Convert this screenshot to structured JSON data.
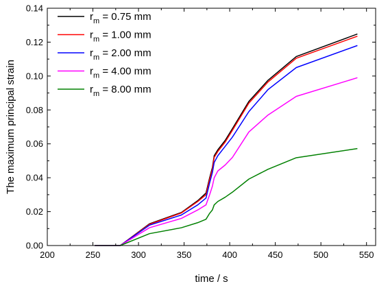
{
  "chart_data": {
    "type": "line",
    "xlabel": "time / s",
    "ylabel": "The maximum principal strain",
    "xlim": [
      200,
      560
    ],
    "ylim": [
      0.0,
      0.14
    ],
    "xticks": [
      200,
      250,
      300,
      350,
      400,
      450,
      500,
      550
    ],
    "yticks": [
      0.0,
      0.02,
      0.04,
      0.06,
      0.08,
      0.1,
      0.12,
      0.14
    ],
    "xtick_labels": [
      "200",
      "250",
      "300",
      "350",
      "400",
      "450",
      "500",
      "550"
    ],
    "ytick_labels": [
      "0.00",
      "0.02",
      "0.04",
      "0.06",
      "0.08",
      "0.10",
      "0.12",
      "0.14"
    ],
    "grid": false,
    "legend_position": "top-left",
    "series": [
      {
        "name": "r_m = 0.75 mm",
        "label_main": "r",
        "label_sub": "m",
        "label_rest": " = 0.75 mm",
        "color": "#000000",
        "x": [
          252,
          280,
          312,
          347,
          365,
          374,
          378,
          381,
          383,
          387,
          395,
          403,
          421,
          442,
          473,
          540
        ],
        "y": [
          0.0,
          0.0,
          0.0128,
          0.0195,
          0.0265,
          0.031,
          0.04,
          0.046,
          0.053,
          0.0565,
          0.062,
          0.069,
          0.085,
          0.0975,
          0.1115,
          0.1248
        ]
      },
      {
        "name": "r_m = 1.00 mm",
        "label_main": "r",
        "label_sub": "m",
        "label_rest": " = 1.00 mm",
        "color": "#ff0000",
        "x": [
          252,
          280,
          312,
          347,
          365,
          374,
          378,
          381,
          383,
          387,
          395,
          403,
          421,
          442,
          473,
          540
        ],
        "y": [
          0.0,
          0.0,
          0.0125,
          0.0192,
          0.026,
          0.03,
          0.039,
          0.045,
          0.052,
          0.0555,
          0.061,
          0.068,
          0.084,
          0.0965,
          0.1105,
          0.1235
        ]
      },
      {
        "name": "r_m = 2.00 mm",
        "label_main": "r",
        "label_sub": "m",
        "label_rest": " = 2.00 mm",
        "color": "#0000ff",
        "x": [
          252,
          280,
          312,
          347,
          365,
          374,
          378,
          381,
          383,
          387,
          395,
          403,
          421,
          442,
          473,
          540
        ],
        "y": [
          0.0,
          0.0,
          0.012,
          0.018,
          0.024,
          0.028,
          0.037,
          0.043,
          0.049,
          0.053,
          0.0585,
          0.064,
          0.079,
          0.092,
          0.105,
          0.118
        ]
      },
      {
        "name": "r_m = 4.00 mm",
        "label_main": "r",
        "label_sub": "m",
        "label_rest": " = 4.00 mm",
        "color": "#ff00ff",
        "x": [
          252,
          280,
          312,
          347,
          365,
          374,
          378,
          381,
          383,
          387,
          395,
          403,
          421,
          442,
          473,
          540
        ],
        "y": [
          0.0,
          0.0,
          0.0105,
          0.016,
          0.021,
          0.024,
          0.03,
          0.035,
          0.04,
          0.044,
          0.0475,
          0.052,
          0.067,
          0.077,
          0.088,
          0.099
        ]
      },
      {
        "name": "r_m = 8.00 mm",
        "label_main": "r",
        "label_sub": "m",
        "label_rest": " = 8.00 mm",
        "color": "#008000",
        "x": [
          252,
          280,
          312,
          347,
          365,
          374,
          378,
          381,
          383,
          387,
          395,
          403,
          421,
          442,
          473,
          540
        ],
        "y": [
          0.0,
          0.0,
          0.007,
          0.0105,
          0.0135,
          0.0155,
          0.019,
          0.021,
          0.024,
          0.026,
          0.0285,
          0.0315,
          0.0392,
          0.045,
          0.0518,
          0.0572
        ]
      }
    ]
  }
}
